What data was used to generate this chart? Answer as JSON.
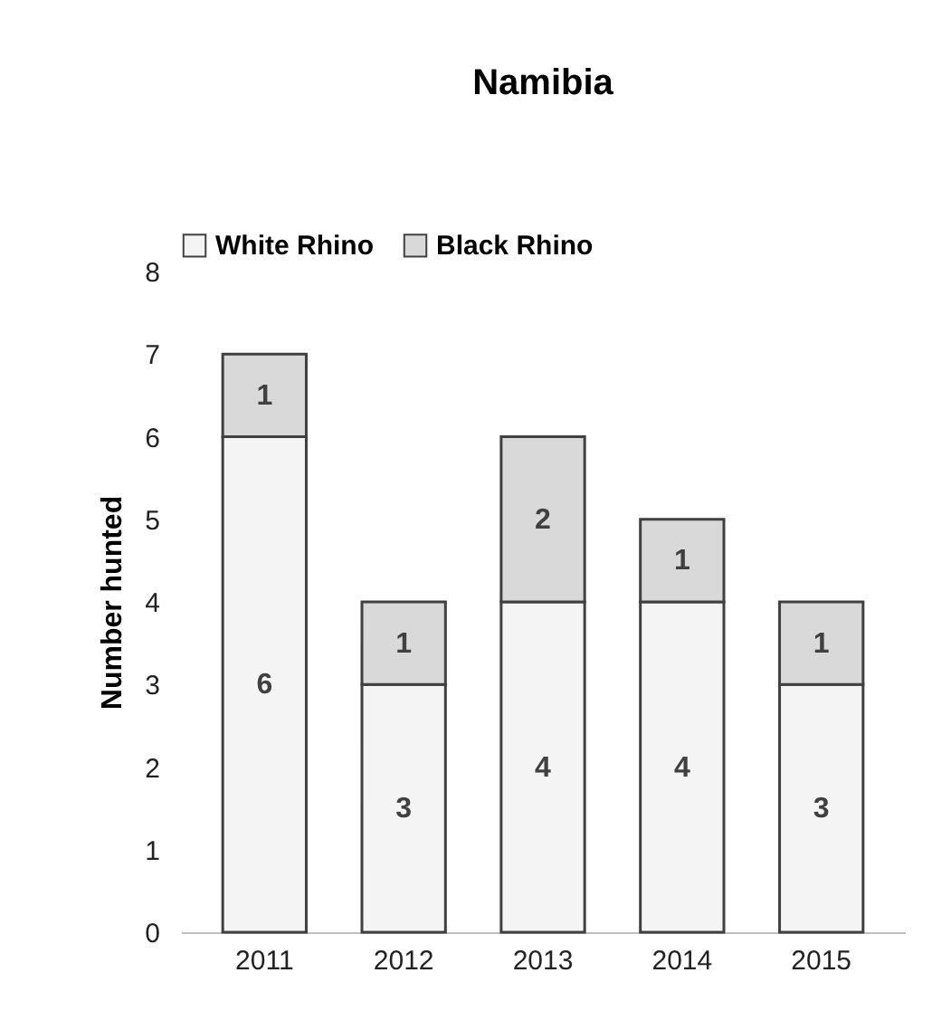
{
  "chart_data": {
    "type": "bar",
    "title": "Namibia",
    "ylabel": "Number hunted",
    "categories": [
      "2011",
      "2012",
      "2013",
      "2014",
      "2015"
    ],
    "stacked": true,
    "series": [
      {
        "name": "White Rhino",
        "color": "#f4f4f4",
        "values": [
          6,
          3,
          4,
          4,
          3
        ]
      },
      {
        "name": "Black Rhino",
        "color": "#d9d9d9",
        "values": [
          1,
          1,
          2,
          1,
          1
        ]
      }
    ],
    "ylim": [
      0,
      8
    ],
    "yticks": [
      0,
      1,
      2,
      3,
      4,
      5,
      6,
      7,
      8
    ],
    "grid": false,
    "legend": "top",
    "data_labels": true
  }
}
